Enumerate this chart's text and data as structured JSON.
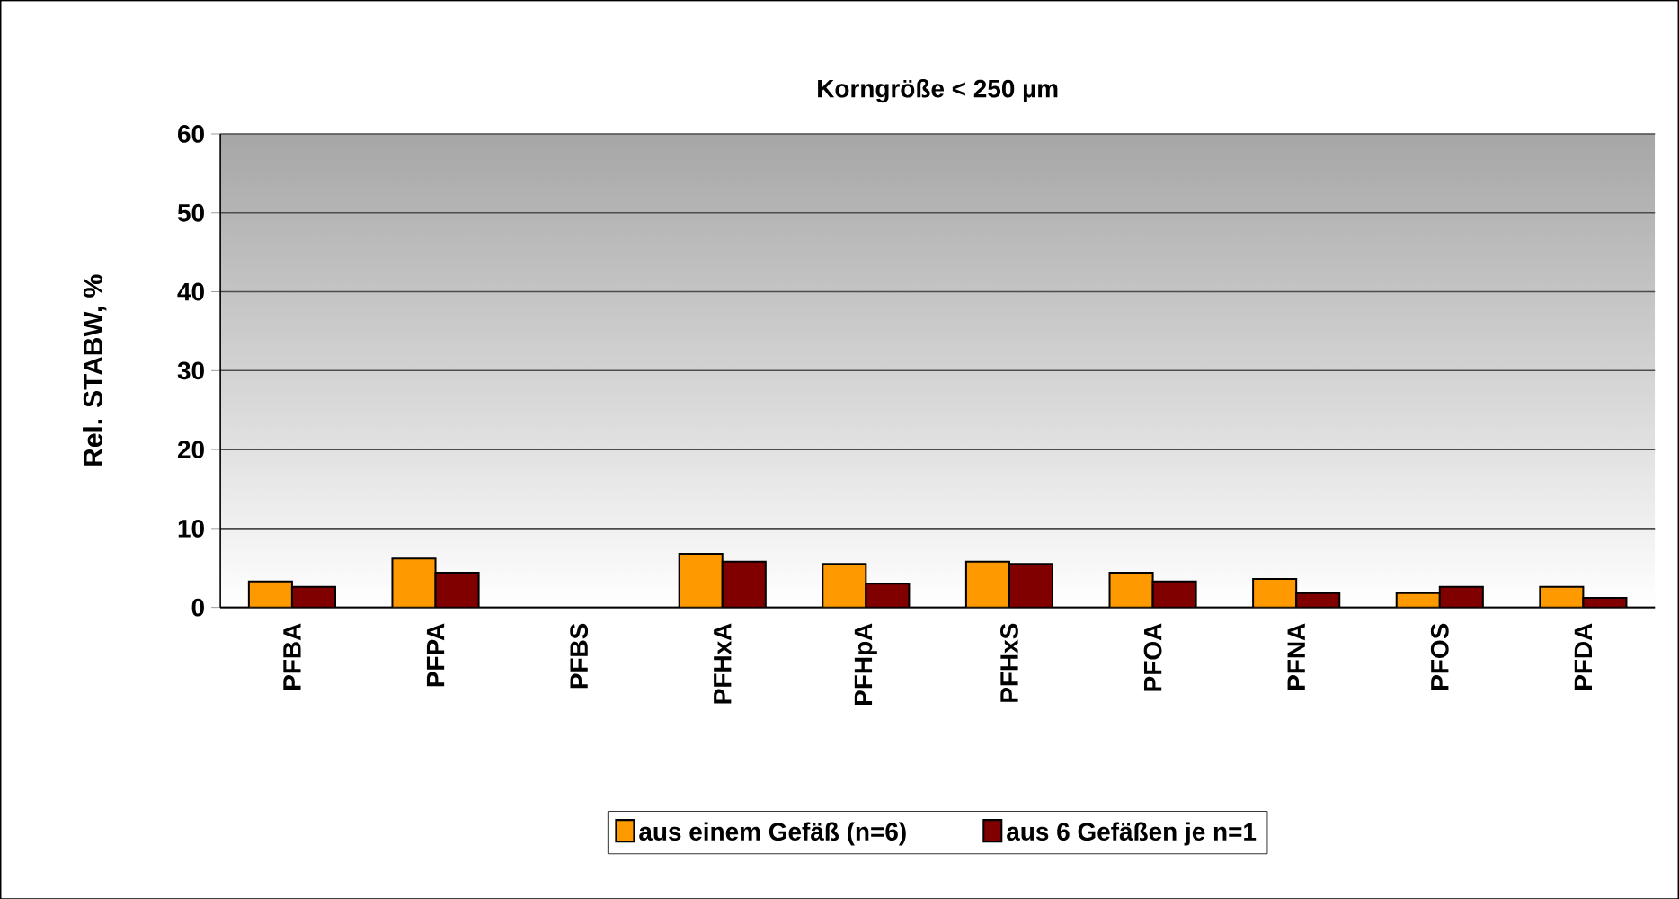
{
  "chart_data": {
    "type": "bar",
    "title": "Korngröße < 250 µm",
    "ylabel": "Rel. STABW, %",
    "categories": [
      "PFBA",
      "PFPA",
      "PFBS",
      "PFHxA",
      "PFHpA",
      "PFHxS",
      "PFOA",
      "PFNA",
      "PFOS",
      "PFDA"
    ],
    "series": [
      {
        "name": "aus einem Gefäß (n=6)",
        "color": "#ff9900",
        "values": [
          3.3,
          6.2,
          null,
          6.8,
          5.5,
          5.8,
          4.4,
          3.6,
          1.8,
          2.6
        ]
      },
      {
        "name": "aus 6 Gefäßen je n=1",
        "color": "#800000",
        "values": [
          2.6,
          4.4,
          null,
          5.8,
          3.0,
          5.5,
          3.3,
          1.8,
          2.6,
          1.2
        ]
      }
    ],
    "ylim": [
      0,
      60
    ],
    "yticks": [
      0,
      10,
      20,
      30,
      40,
      50,
      60
    ],
    "grid": "y",
    "legend": "bottom"
  }
}
